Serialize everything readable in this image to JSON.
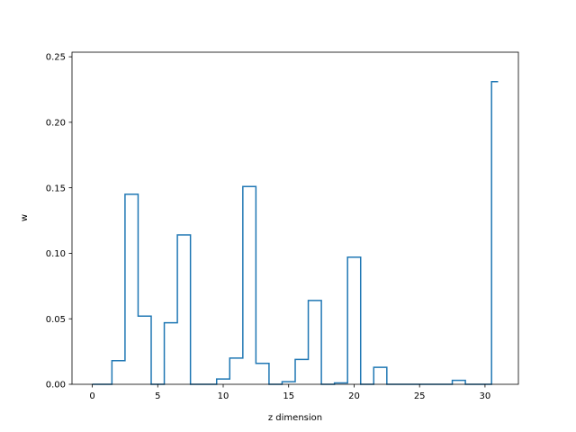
{
  "chart_data": {
    "type": "line",
    "drawstyle": "steps-mid",
    "title": "",
    "xlabel": "z dimension",
    "ylabel": "w",
    "xlim": [
      -1.55,
      32.55
    ],
    "ylim": [
      0,
      0.2535
    ],
    "xticks": [
      0,
      5,
      10,
      15,
      20,
      25,
      30
    ],
    "yticks": [
      0.0,
      0.05,
      0.1,
      0.15,
      0.2,
      0.25
    ],
    "xtick_labels": [
      "0",
      "5",
      "10",
      "15",
      "20",
      "25",
      "30"
    ],
    "ytick_labels": [
      "0.00",
      "0.05",
      "0.10",
      "0.15",
      "0.20",
      "0.25"
    ],
    "grid": false,
    "series": [
      {
        "color": "#1f77b4",
        "x": [
          0,
          1,
          2,
          3,
          4,
          5,
          6,
          7,
          8,
          9,
          10,
          11,
          12,
          13,
          14,
          15,
          16,
          17,
          18,
          19,
          20,
          21,
          22,
          23,
          24,
          25,
          26,
          27,
          28,
          29,
          30,
          31
        ],
        "y": [
          0.0,
          0.0,
          0.018,
          0.145,
          0.052,
          0.0,
          0.047,
          0.114,
          0.0,
          0.0,
          0.004,
          0.02,
          0.151,
          0.016,
          0.0,
          0.002,
          0.019,
          0.064,
          0.0,
          0.001,
          0.097,
          0.0,
          0.013,
          0.0,
          0.0,
          0.0,
          0.0,
          0.0,
          0.003,
          0.0,
          0.0,
          0.231
        ]
      }
    ]
  }
}
